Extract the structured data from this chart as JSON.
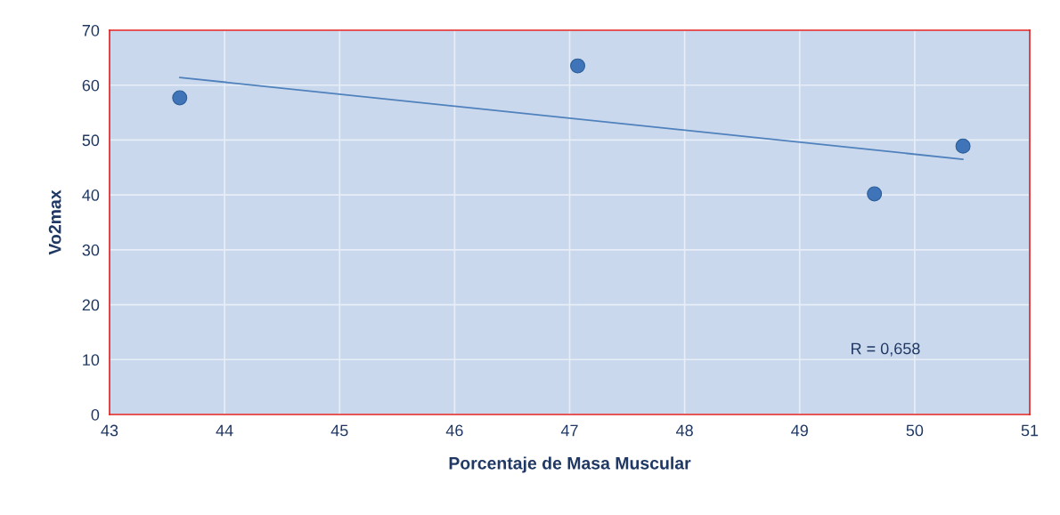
{
  "chart_data": {
    "type": "scatter",
    "xlabel": "Porcentaje de Masa Muscular",
    "ylabel": "Vo2max",
    "series": [
      {
        "color": "#3f75b8",
        "marker": "circle",
        "x": [
          43.61,
          47.07,
          49.65,
          50.42
        ],
        "values": [
          57.7,
          63.5,
          40.2,
          48.9
        ]
      },
      {
        "type": "line",
        "color": "#4f81bd",
        "x": [
          43.61,
          50.42
        ],
        "values": [
          61.4,
          46.5
        ]
      }
    ],
    "xlim": [
      43,
      51
    ],
    "xticks": [
      43,
      44,
      45,
      46,
      47,
      48,
      49,
      50,
      51
    ],
    "ylim": [
      0,
      70
    ],
    "yticks": [
      0,
      10,
      20,
      30,
      40,
      50,
      60,
      70
    ],
    "grid": true,
    "legend": false,
    "annotations": [
      "R = 0,658"
    ]
  }
}
